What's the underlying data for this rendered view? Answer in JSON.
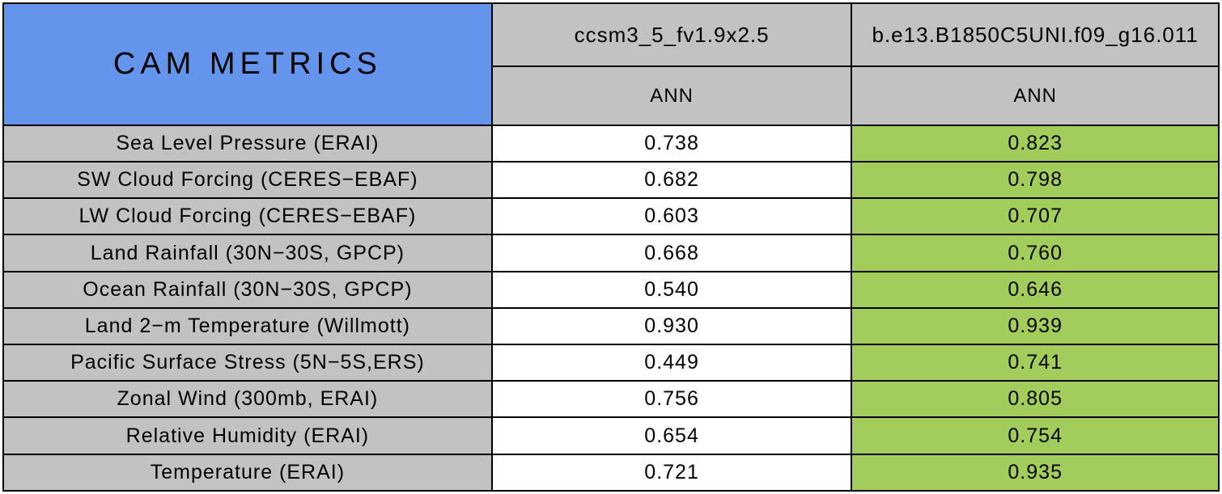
{
  "title": "CAM METRICS",
  "columns": [
    {
      "model": "ccsm3_5_fv1.9x2.5",
      "season": "ANN"
    },
    {
      "model": "b.e13.B1850C5UNI.f09_g16.011",
      "season": "ANN"
    }
  ],
  "rows": [
    {
      "label": "Sea Level Pressure (ERAI)",
      "values": [
        "0.738",
        "0.823"
      ]
    },
    {
      "label": "SW Cloud Forcing (CERES−EBAF)",
      "values": [
        "0.682",
        "0.798"
      ]
    },
    {
      "label": "LW Cloud Forcing (CERES−EBAF)",
      "values": [
        "0.603",
        "0.707"
      ]
    },
    {
      "label": "Land Rainfall (30N−30S, GPCP)",
      "values": [
        "0.668",
        "0.760"
      ]
    },
    {
      "label": "Ocean Rainfall (30N−30S, GPCP)",
      "values": [
        "0.540",
        "0.646"
      ]
    },
    {
      "label": "Land 2−m Temperature (Willmott)",
      "values": [
        "0.930",
        "0.939"
      ]
    },
    {
      "label": "Pacific Surface Stress (5N−5S,ERS)",
      "values": [
        "0.449",
        "0.741"
      ]
    },
    {
      "label": "Zonal Wind (300mb, ERAI)",
      "values": [
        "0.756",
        "0.805"
      ]
    },
    {
      "label": "Relative Humidity (ERAI)",
      "values": [
        "0.654",
        "0.754"
      ]
    },
    {
      "label": "Temperature (ERAI)",
      "values": [
        "0.721",
        "0.935"
      ]
    }
  ],
  "colors": {
    "title_background": "#6495ED",
    "header_background": "#C2C2C2",
    "value_col1_background": "#FFFFFF",
    "value_col2_background": "#A2CD5A",
    "border": "#000000",
    "text": "#000000"
  }
}
